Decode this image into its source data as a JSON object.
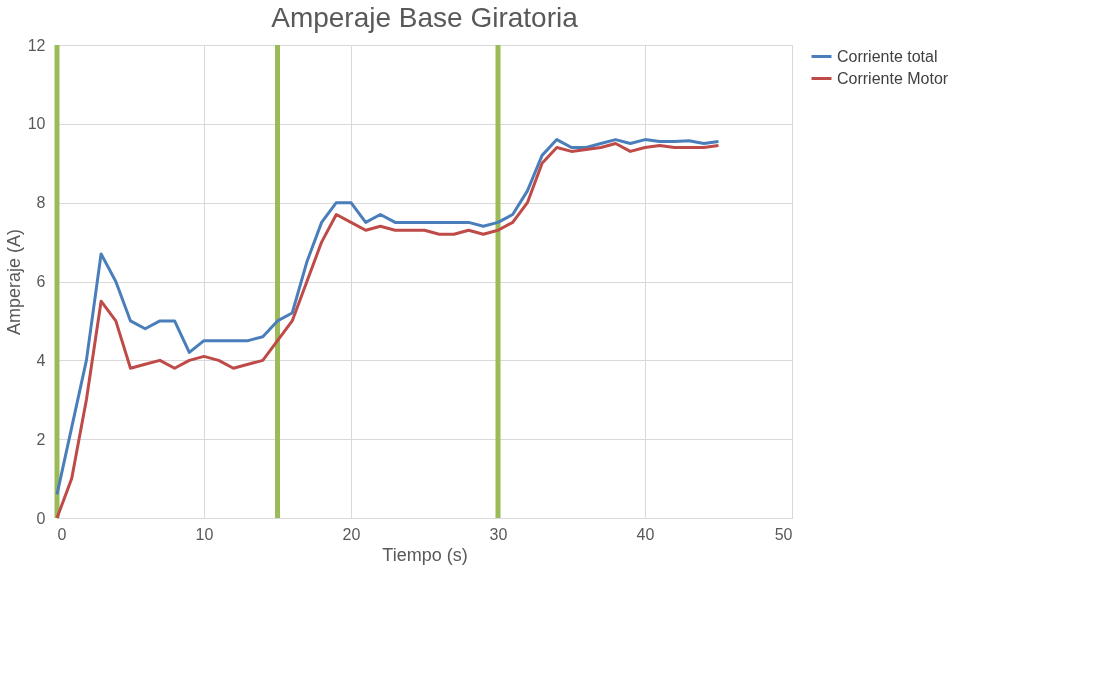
{
  "chart_data": {
    "type": "line",
    "title": "Amperaje Base Giratoria",
    "xlabel": "Tiempo (s)",
    "ylabel": "Amperaje (A)",
    "x": [
      0,
      1,
      2,
      3,
      4,
      5,
      6,
      7,
      8,
      9,
      10,
      11,
      12,
      13,
      14,
      15,
      16,
      17,
      18,
      19,
      20,
      21,
      22,
      23,
      24,
      25,
      26,
      27,
      28,
      29,
      30,
      31,
      32,
      33,
      34,
      35,
      36,
      37,
      38,
      39,
      40,
      41,
      42,
      43,
      44,
      45
    ],
    "series": [
      {
        "name": "Corriente total",
        "color": "#4a7ebb",
        "values": [
          0.6,
          2.3,
          4,
          6.7,
          6,
          5,
          4.8,
          5,
          5,
          4.2,
          4.5,
          4.5,
          4.5,
          4.5,
          4.6,
          5,
          5.2,
          6.5,
          7.5,
          8,
          8,
          7.5,
          7.7,
          7.5,
          7.5,
          7.5,
          7.5,
          7.5,
          7.5,
          7.4,
          7.5,
          7.7,
          8.3,
          9.2,
          9.6,
          9.4,
          9.4,
          9.5,
          9.6,
          9.5,
          9.6,
          9.55,
          9.55,
          9.57,
          9.5,
          9.55
        ]
      },
      {
        "name": "Corriente Motor",
        "color": "#be4b48",
        "values": [
          0,
          1,
          3,
          5.5,
          5,
          3.8,
          3.9,
          4,
          3.8,
          4,
          4.1,
          4,
          3.8,
          3.9,
          4,
          4.5,
          5,
          6,
          7,
          7.7,
          7.5,
          7.3,
          7.4,
          7.3,
          7.3,
          7.3,
          7.2,
          7.2,
          7.3,
          7.2,
          7.3,
          7.5,
          8,
          9,
          9.4,
          9.3,
          9.35,
          9.4,
          9.5,
          9.3,
          9.4,
          9.45,
          9.4,
          9.4,
          9.4,
          9.45
        ]
      }
    ],
    "xlim": [
      0,
      50
    ],
    "xticks": [
      0,
      10,
      20,
      30,
      40,
      50
    ],
    "ylim": [
      0,
      12
    ],
    "yticks": [
      0,
      2,
      4,
      6,
      8,
      10,
      12
    ],
    "ref_lines": [
      {
        "axis": "x",
        "value": 0,
        "color": "#9bbb59"
      },
      {
        "axis": "x",
        "value": 15,
        "color": "#9bbb59"
      },
      {
        "axis": "x",
        "value": 30,
        "color": "#9bbb59"
      }
    ],
    "grid": true,
    "legend": "right",
    "marker": "none",
    "line_style": "solid"
  }
}
